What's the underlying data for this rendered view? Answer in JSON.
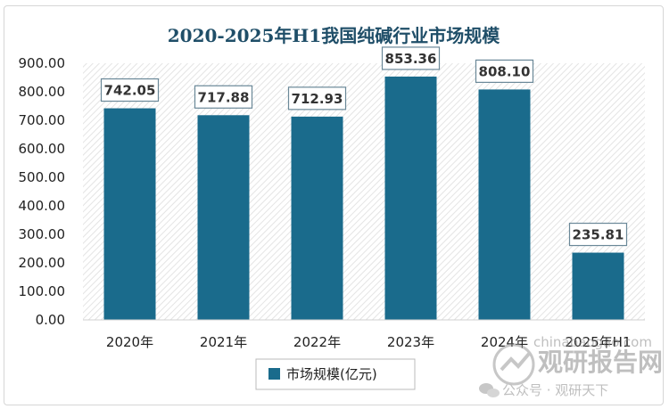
{
  "chart_data": {
    "type": "bar",
    "title": "2020-2025年H1我国纯碱行业市场规模",
    "categories": [
      "2020年",
      "2021年",
      "2022年",
      "2023年",
      "2024年",
      "2025年H1"
    ],
    "series": [
      {
        "name": "市场规模(亿元)",
        "values": [
          742.05,
          717.88,
          712.93,
          853.36,
          808.1,
          235.81
        ],
        "labels": [
          "742.05",
          "717.88",
          "712.93",
          "853.36",
          "808.10",
          "235.81"
        ]
      }
    ],
    "yticks": [
      "0.00",
      "100.00",
      "200.00",
      "300.00",
      "400.00",
      "500.00",
      "600.00",
      "700.00",
      "800.00",
      "900.00"
    ],
    "ylim": [
      0,
      900
    ],
    "bar_color": "#1a6b8c",
    "legend_position": "bottom"
  },
  "watermark": {
    "brand": "观研报告网",
    "url": "chinabaogao.com",
    "account": "公众号 · 观研天下"
  }
}
